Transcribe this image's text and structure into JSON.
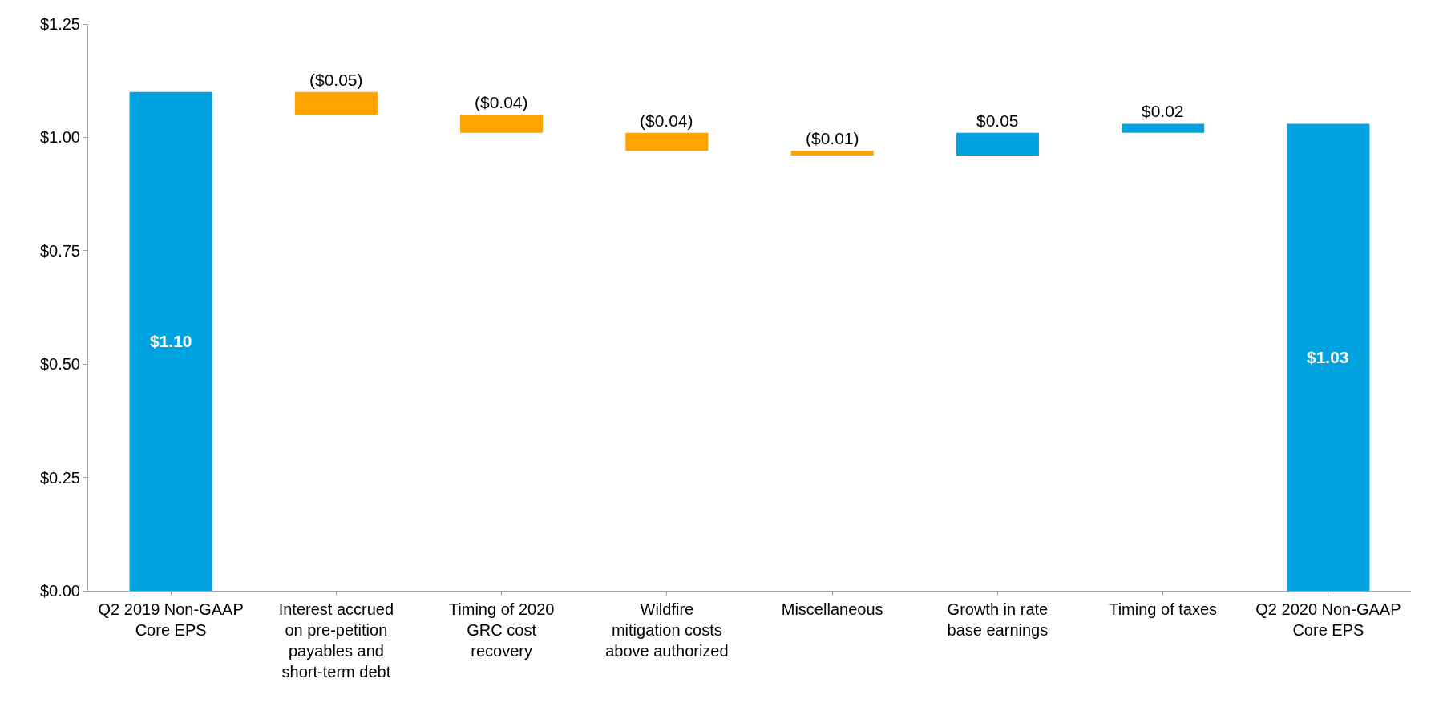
{
  "chart_data": {
    "type": "bar",
    "categories": [
      "Q2 2019 Non-GAAP Core EPS",
      "Interest accrued on pre-petition payables and short-term debt",
      "Timing of 2020 GRC cost recovery",
      "Wildfire mitigation costs above authorized",
      "Miscellaneous",
      "Growth in rate base earnings",
      "Timing of taxes",
      "Q2 2020 Non-GAAP Core EPS"
    ],
    "values": [
      1.1,
      -0.05,
      -0.04,
      -0.04,
      -0.01,
      0.05,
      0.02,
      1.03
    ],
    "base": [
      0,
      1.1,
      1.05,
      1.01,
      0.97,
      0.96,
      1.01,
      0
    ],
    "colors": [
      "#00a3e0",
      "#ffa300",
      "#ffa300",
      "#ffa300",
      "#ffa300",
      "#00a3e0",
      "#00a3e0",
      "#00a3e0"
    ],
    "value_labels": [
      "$1.10",
      "($0.05)",
      "($0.04)",
      "($0.04)",
      "($0.01)",
      "$0.05",
      "$0.02",
      "$1.03"
    ],
    "ylim": [
      0,
      1.25
    ],
    "yticks": [
      {
        "value": 0,
        "label": "$0.00"
      },
      {
        "value": 0.25,
        "label": "$0.25"
      },
      {
        "value": 0.5,
        "label": "$0.50"
      },
      {
        "value": 0.75,
        "label": "$0.75"
      },
      {
        "value": 1.0,
        "label": "$1.00"
      },
      {
        "value": 1.25,
        "label": "$1.25"
      }
    ],
    "tick_labels": "xy"
  }
}
